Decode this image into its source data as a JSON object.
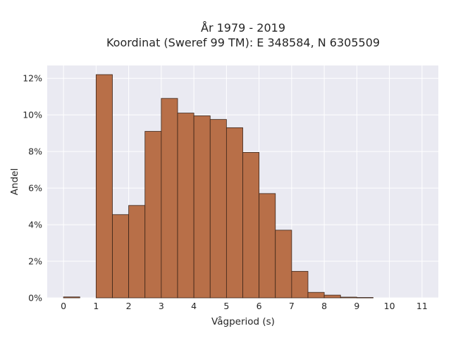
{
  "chart_data": {
    "type": "bar",
    "title_lines": [
      "År 1979 - 2019",
      "Koordinat (Sweref 99 TM): E 348584, N 6305509"
    ],
    "xlabel": "Vågperiod (s)",
    "ylabel": "Andel",
    "xlim": [
      -0.5,
      11.5
    ],
    "ylim": [
      0,
      12.7
    ],
    "x_ticks": [
      0,
      1,
      2,
      3,
      4,
      5,
      6,
      7,
      8,
      9,
      10,
      11
    ],
    "y_ticks": [
      0,
      2,
      4,
      6,
      8,
      10,
      12
    ],
    "y_tick_format": "percent",
    "bin_width": 0.5,
    "bins": [
      {
        "start": 0.0,
        "value": 0.05
      },
      {
        "start": 1.0,
        "value": 12.2
      },
      {
        "start": 1.5,
        "value": 4.55
      },
      {
        "start": 2.0,
        "value": 5.05
      },
      {
        "start": 2.5,
        "value": 9.1
      },
      {
        "start": 3.0,
        "value": 10.9
      },
      {
        "start": 3.5,
        "value": 10.1
      },
      {
        "start": 4.0,
        "value": 9.95
      },
      {
        "start": 4.5,
        "value": 9.75
      },
      {
        "start": 5.0,
        "value": 9.3
      },
      {
        "start": 5.5,
        "value": 7.95
      },
      {
        "start": 6.0,
        "value": 5.7
      },
      {
        "start": 6.5,
        "value": 3.7
      },
      {
        "start": 7.0,
        "value": 1.45
      },
      {
        "start": 7.5,
        "value": 0.3
      },
      {
        "start": 8.0,
        "value": 0.15
      },
      {
        "start": 8.5,
        "value": 0.04
      },
      {
        "start": 9.0,
        "value": 0.02
      }
    ],
    "grid": true,
    "colors": {
      "bar": "#b86f48",
      "plot_background": "#eaeaf2",
      "grid": "#ffffff"
    }
  }
}
